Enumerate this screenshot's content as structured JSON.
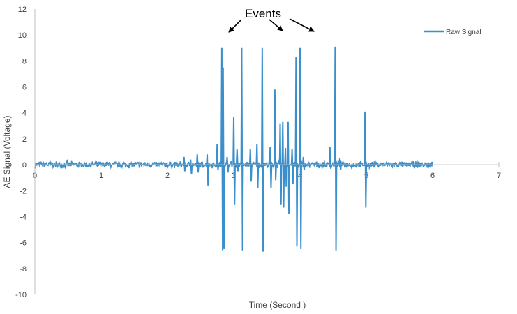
{
  "chart_data": {
    "type": "line",
    "title": "",
    "xlabel": "Time (Second )",
    "ylabel": "AE Signal (Voltage)",
    "xlim": [
      0,
      7
    ],
    "ylim": [
      -10,
      12
    ],
    "xticks": [
      "0",
      "1",
      "2",
      "3",
      "4",
      "5",
      "6",
      "7"
    ],
    "yticks": [
      "-10",
      "-8",
      "-6",
      "-4",
      "-2",
      "0",
      "2",
      "4",
      "6",
      "8",
      "10",
      "12"
    ],
    "grid": false,
    "legend_position": "top-right",
    "annotation": {
      "text": "Events",
      "arrows_point_to_x": [
        2.9,
        3.8,
        4.2
      ]
    },
    "series": [
      {
        "name": "Raw Signal",
        "color": "#3a8fcc",
        "baseline_range": [
          0,
          6
        ],
        "noise_amplitude": 0.3,
        "spikes": [
          {
            "x": 2.25,
            "max": 0.6,
            "min": -0.5
          },
          {
            "x": 2.35,
            "max": 0.4,
            "min": -0.7
          },
          {
            "x": 2.45,
            "max": 0.8,
            "min": -0.6
          },
          {
            "x": 2.6,
            "max": 0.8,
            "min": -1.6
          },
          {
            "x": 2.75,
            "max": 1.6,
            "min": -0.4
          },
          {
            "x": 2.82,
            "max": 9.0,
            "min": -6.6
          },
          {
            "x": 2.84,
            "max": 7.5,
            "min": -6.5
          },
          {
            "x": 2.9,
            "max": 0.6,
            "min": -0.6
          },
          {
            "x": 3.0,
            "max": 3.7,
            "min": -3.1
          },
          {
            "x": 3.05,
            "max": 1.2,
            "min": -0.5
          },
          {
            "x": 3.12,
            "max": 9.0,
            "min": -6.6
          },
          {
            "x": 3.25,
            "max": 1.2,
            "min": -1.3
          },
          {
            "x": 3.35,
            "max": 1.6,
            "min": -1.8
          },
          {
            "x": 3.43,
            "max": 9.0,
            "min": -6.7
          },
          {
            "x": 3.55,
            "max": 1.4,
            "min": -1.8
          },
          {
            "x": 3.62,
            "max": 5.8,
            "min": -1.2
          },
          {
            "x": 3.7,
            "max": 3.2,
            "min": -3.1
          },
          {
            "x": 3.74,
            "max": 3.3,
            "min": -3.3
          },
          {
            "x": 3.78,
            "max": 1.3,
            "min": -1.7
          },
          {
            "x": 3.82,
            "max": 3.3,
            "min": -3.8
          },
          {
            "x": 3.88,
            "max": 1.2,
            "min": -1.5
          },
          {
            "x": 3.94,
            "max": 8.3,
            "min": -6.3
          },
          {
            "x": 4.0,
            "max": 9.0,
            "min": -6.5
          },
          {
            "x": 4.05,
            "max": 0.6,
            "min": -0.4
          },
          {
            "x": 4.45,
            "max": 1.4,
            "min": -0.3
          },
          {
            "x": 4.53,
            "max": 9.1,
            "min": -6.6
          },
          {
            "x": 4.6,
            "max": 0.5,
            "min": -0.4
          },
          {
            "x": 4.98,
            "max": 4.1,
            "min": -3.3
          }
        ]
      }
    ]
  }
}
